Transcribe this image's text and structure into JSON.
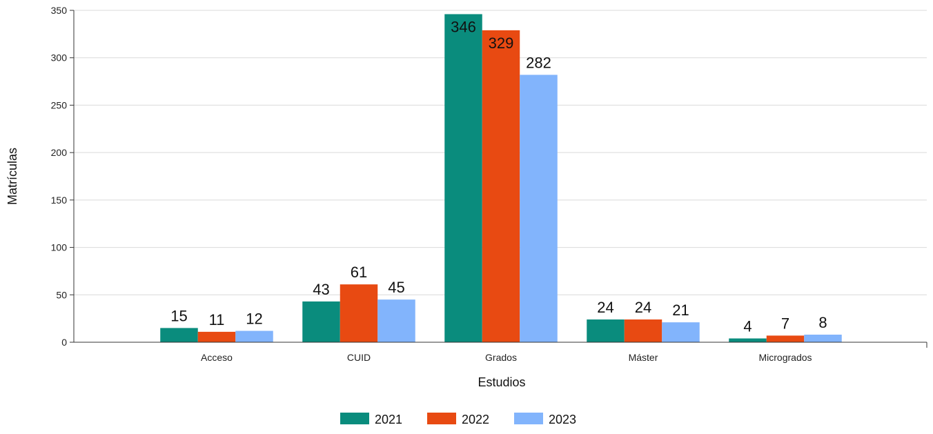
{
  "chart_data": {
    "type": "bar",
    "title": "",
    "xlabel": "Estudios",
    "ylabel": "Matrículas",
    "categories": [
      "Acceso",
      "CUID",
      "Grados",
      "Máster",
      "Microgrados"
    ],
    "series": [
      {
        "name": "2021",
        "values": [
          15,
          43,
          346,
          24,
          4
        ],
        "color": "#0a8c7d"
      },
      {
        "name": "2022",
        "values": [
          11,
          61,
          329,
          24,
          7
        ],
        "color": "#e84a12"
      },
      {
        "name": "2023",
        "values": [
          12,
          45,
          282,
          21,
          8
        ],
        "color": "#82b4fc"
      }
    ],
    "ylim": [
      0,
      350
    ],
    "yticks": [
      0,
      50,
      100,
      150,
      200,
      250,
      300,
      350
    ],
    "grid": true,
    "legend_position": "bottom-center"
  }
}
